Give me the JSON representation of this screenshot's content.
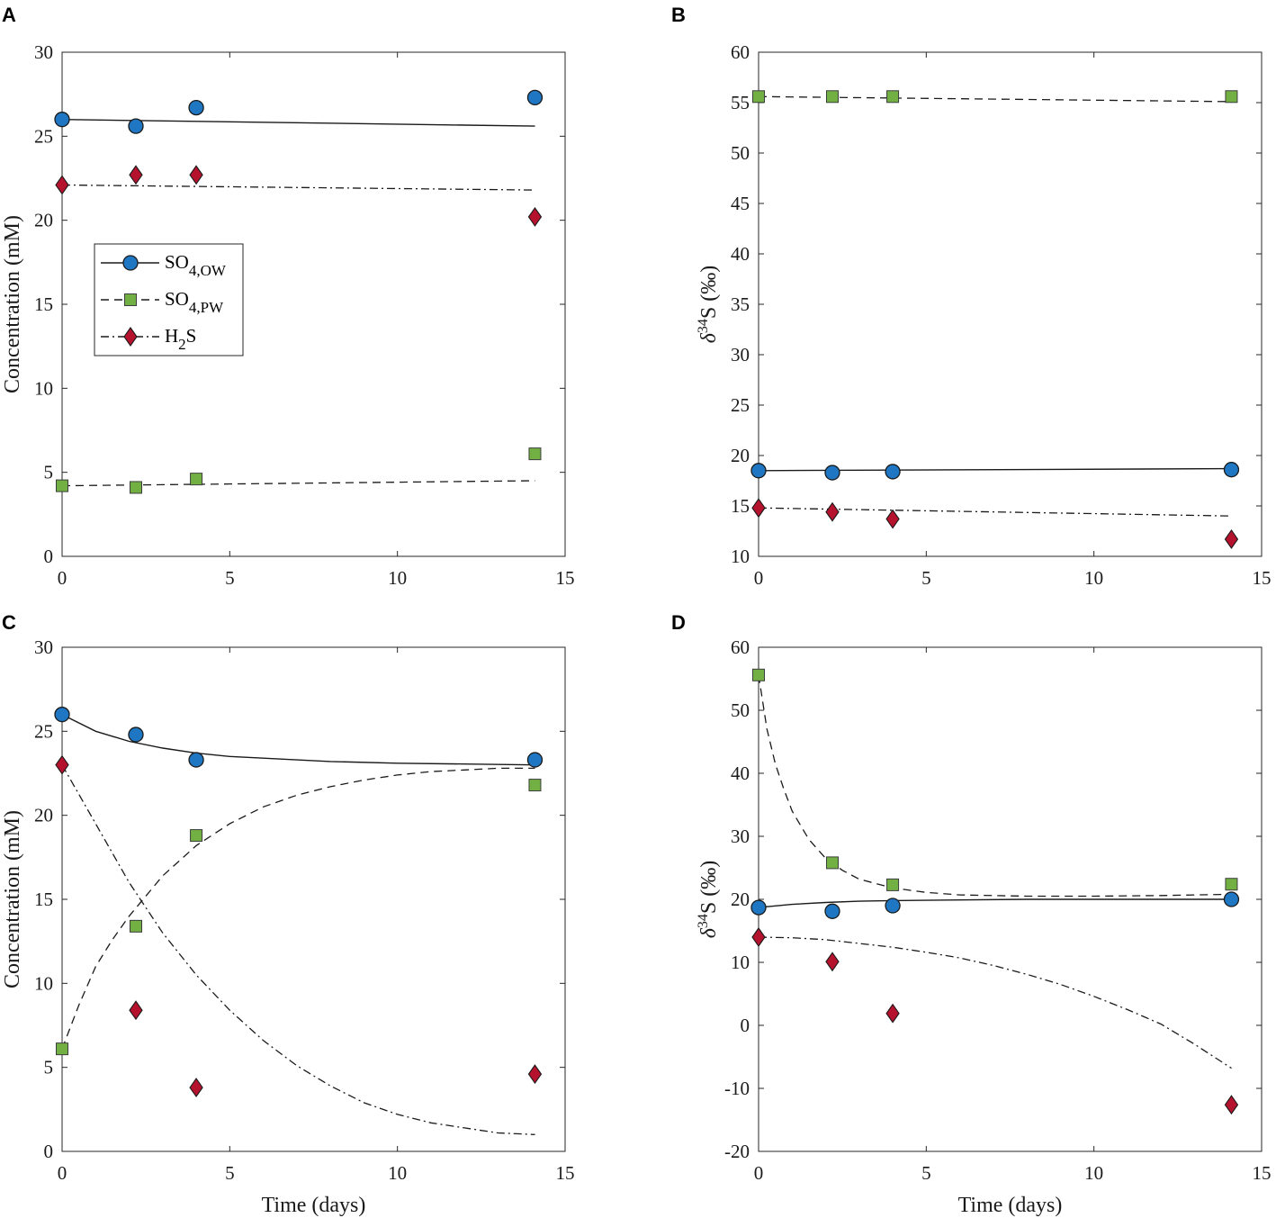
{
  "chart_data": [
    {
      "panel": "A",
      "type": "scatter",
      "xlabel": "",
      "ylabel": "Concentration (mM)",
      "xlim": [
        0,
        15
      ],
      "ylim": [
        0,
        30
      ],
      "xticks": [
        0,
        5,
        10,
        15
      ],
      "yticks": [
        0,
        5,
        10,
        15,
        20,
        25,
        30
      ],
      "series": [
        {
          "name": "SO4,OW",
          "marker": "circle",
          "color": "#1f77c4",
          "line": "solid",
          "x": [
            0,
            2.2,
            4,
            14.1
          ],
          "y": [
            26.0,
            25.6,
            26.7,
            27.3
          ],
          "fit_x": [
            0,
            14.1
          ],
          "fit_y": [
            26.0,
            25.6
          ]
        },
        {
          "name": "SO4,PW",
          "marker": "square",
          "color": "#72b043",
          "line": "dashed",
          "x": [
            0,
            2.2,
            4,
            14.1
          ],
          "y": [
            4.2,
            4.1,
            4.6,
            6.1
          ],
          "fit_x": [
            0,
            14.1
          ],
          "fit_y": [
            4.2,
            4.5
          ]
        },
        {
          "name": "H2S",
          "marker": "diamond",
          "color": "#b5122e",
          "line": "dashdot",
          "x": [
            0,
            2.2,
            4,
            14.1
          ],
          "y": [
            22.1,
            22.7,
            22.7,
            20.2
          ],
          "fit_x": [
            0,
            14.1
          ],
          "fit_y": [
            22.1,
            21.8
          ]
        }
      ],
      "legend": {
        "position": "middle-left",
        "entries": [
          {
            "main": "SO",
            "sub": "4,OW",
            "after": "",
            "marker": "circle"
          },
          {
            "main": "SO",
            "sub": "4,PW",
            "after": "",
            "marker": "square"
          },
          {
            "main": "H",
            "sub": "2",
            "after": "S",
            "marker": "diamond"
          }
        ]
      }
    },
    {
      "panel": "B",
      "type": "scatter",
      "xlabel": "",
      "ylabel": {
        "prefix": "δ",
        "sup": "34",
        "rest": "S (‰)"
      },
      "xlim": [
        0,
        15
      ],
      "ylim": [
        10,
        60
      ],
      "xticks": [
        0,
        5,
        10,
        15
      ],
      "yticks": [
        10,
        15,
        20,
        25,
        30,
        35,
        40,
        45,
        50,
        55,
        60
      ],
      "series": [
        {
          "name": "SO4,OW",
          "marker": "circle",
          "color": "#1f77c4",
          "line": "solid",
          "x": [
            0,
            2.2,
            4,
            14.1
          ],
          "y": [
            18.5,
            18.3,
            18.4,
            18.6
          ],
          "fit_x": [
            0,
            14.1
          ],
          "fit_y": [
            18.5,
            18.7
          ]
        },
        {
          "name": "SO4,PW",
          "marker": "square",
          "color": "#72b043",
          "line": "dashed",
          "x": [
            0,
            2.2,
            4,
            14.1
          ],
          "y": [
            55.6,
            55.6,
            55.6,
            55.6
          ],
          "fit_x": [
            0,
            14.1
          ],
          "fit_y": [
            55.6,
            55.1
          ]
        },
        {
          "name": "H2S",
          "marker": "diamond",
          "color": "#b5122e",
          "line": "dashdot",
          "x": [
            0,
            2.2,
            4,
            14.1
          ],
          "y": [
            14.8,
            14.4,
            13.7,
            11.7
          ],
          "fit_x": [
            0,
            14.1
          ],
          "fit_y": [
            14.8,
            14.0
          ]
        }
      ]
    },
    {
      "panel": "C",
      "type": "scatter",
      "xlabel": "Time (days)",
      "ylabel": "Concentration (mM)",
      "xlim": [
        0,
        15
      ],
      "ylim": [
        0,
        30
      ],
      "xticks": [
        0,
        5,
        10,
        15
      ],
      "yticks": [
        0,
        5,
        10,
        15,
        20,
        25,
        30
      ],
      "series": [
        {
          "name": "SO4,OW",
          "marker": "circle",
          "color": "#1f77c4",
          "line": "solid",
          "x": [
            0,
            2.2,
            4,
            14.1
          ],
          "y": [
            26.0,
            24.8,
            23.3,
            23.3
          ],
          "fit_x": [
            0,
            1,
            2,
            3,
            4,
            5,
            6,
            7,
            8,
            10,
            12,
            14.1
          ],
          "fit_y": [
            26.0,
            25.0,
            24.4,
            24.0,
            23.7,
            23.5,
            23.4,
            23.3,
            23.2,
            23.1,
            23.05,
            23.0
          ]
        },
        {
          "name": "SO4,PW",
          "marker": "square",
          "color": "#72b043",
          "line": "dashed",
          "x": [
            0,
            2.2,
            4,
            14.1
          ],
          "y": [
            6.1,
            13.4,
            18.8,
            21.8
          ],
          "fit_x": [
            0,
            0.5,
            1,
            1.5,
            2,
            3,
            4,
            5,
            6,
            7,
            8,
            9,
            10,
            11,
            12,
            13,
            14.1
          ],
          "fit_y": [
            6.1,
            8.7,
            11.0,
            12.6,
            14.0,
            16.4,
            18.2,
            19.5,
            20.5,
            21.2,
            21.7,
            22.1,
            22.4,
            22.6,
            22.7,
            22.8,
            22.8
          ]
        },
        {
          "name": "H2S",
          "marker": "diamond",
          "color": "#b5122e",
          "line": "dashdot",
          "x": [
            0,
            2.2,
            4,
            14.1
          ],
          "y": [
            23.0,
            8.4,
            3.8,
            4.6
          ],
          "fit_x": [
            0,
            1,
            2,
            3,
            4,
            5,
            6,
            7,
            8,
            9,
            10,
            11,
            12,
            13,
            14.1
          ],
          "fit_y": [
            23.0,
            19.5,
            16.0,
            13.0,
            10.5,
            8.4,
            6.6,
            5.1,
            3.9,
            2.9,
            2.2,
            1.7,
            1.4,
            1.1,
            1.0
          ]
        }
      ]
    },
    {
      "panel": "D",
      "type": "scatter",
      "xlabel": "Time (days)",
      "ylabel": {
        "prefix": "δ",
        "sup": "34",
        "rest": "S (‰)"
      },
      "xlim": [
        0,
        15
      ],
      "ylim": [
        -20,
        60
      ],
      "xticks": [
        0,
        5,
        10,
        15
      ],
      "yticks": [
        -20,
        -10,
        0,
        10,
        20,
        30,
        40,
        50,
        60
      ],
      "series": [
        {
          "name": "SO4,OW",
          "marker": "circle",
          "color": "#1f77c4",
          "line": "solid",
          "x": [
            0,
            2.2,
            4,
            14.1
          ],
          "y": [
            18.7,
            18.1,
            19.0,
            20.0
          ],
          "fit_x": [
            0,
            1,
            2,
            3,
            4,
            6,
            8,
            10,
            12,
            14.1
          ],
          "fit_y": [
            18.7,
            19.2,
            19.5,
            19.7,
            19.8,
            19.9,
            20.0,
            20.0,
            20.0,
            20.0
          ]
        },
        {
          "name": "SO4,PW",
          "marker": "square",
          "color": "#72b043",
          "line": "dashed",
          "x": [
            0,
            2.2,
            4,
            14.1
          ],
          "y": [
            55.6,
            25.8,
            22.3,
            22.4
          ],
          "fit_x": [
            0,
            0.25,
            0.5,
            0.75,
            1,
            1.5,
            2,
            2.5,
            3,
            4,
            5,
            6,
            8,
            10,
            12,
            14.1
          ],
          "fit_y": [
            55.6,
            47.0,
            41.5,
            37.5,
            34.0,
            29.5,
            26.5,
            24.6,
            23.2,
            21.8,
            21.1,
            20.7,
            20.5,
            20.5,
            20.6,
            20.8
          ]
        },
        {
          "name": "H2S",
          "marker": "diamond",
          "color": "#b5122e",
          "line": "dashdot",
          "x": [
            0,
            2.2,
            4,
            14.1
          ],
          "y": [
            14.0,
            10.1,
            1.9,
            -12.6
          ],
          "fit_x": [
            0,
            1,
            2,
            3,
            4,
            5,
            6,
            7,
            8,
            9,
            10,
            11,
            12,
            13,
            14.1
          ],
          "fit_y": [
            14.0,
            13.9,
            13.6,
            13.0,
            12.4,
            11.6,
            10.7,
            9.5,
            8.1,
            6.5,
            4.6,
            2.5,
            0.2,
            -3.0,
            -6.8
          ]
        }
      ]
    }
  ]
}
